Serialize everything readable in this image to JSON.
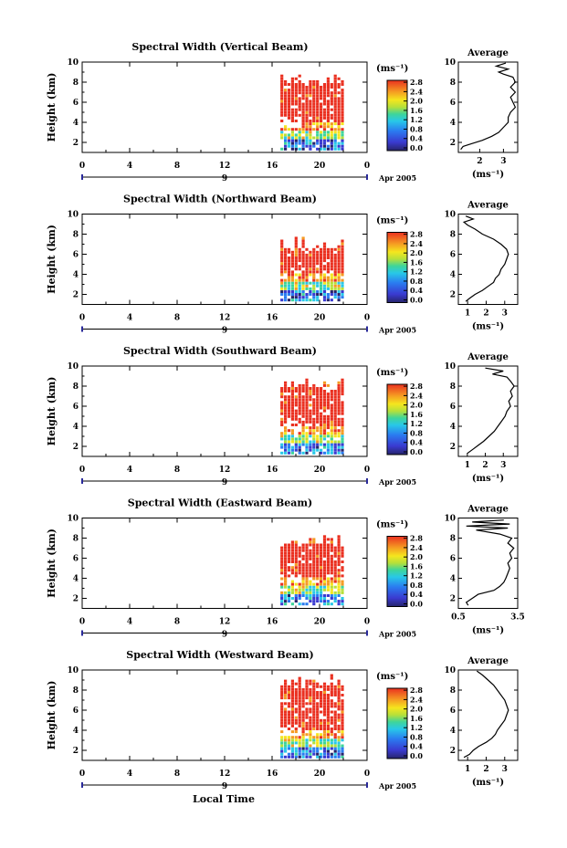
{
  "figure": {
    "bottom_xlabel": "Local Time",
    "date_label": "Apr 2005"
  },
  "chart_data": [
    {
      "type": "heatmap",
      "title": "Spectral Width (Vertical Beam)",
      "ylabel": "Height (km)",
      "yticks": [
        "2",
        "4",
        "6",
        "8",
        "10"
      ],
      "ylim": [
        1,
        10
      ],
      "xticks": [
        "0",
        "4",
        "8",
        "12",
        "16",
        "20",
        "0"
      ],
      "xlim": [
        0,
        24
      ],
      "day_label": "9",
      "date_label": "Apr 2005",
      "colorbar": {
        "unit": "(ms⁻¹)",
        "ticks": [
          "0.0",
          "0.4",
          "0.8",
          "1.2",
          "1.6",
          "2.0",
          "2.4",
          "2.8"
        ],
        "range": [
          0,
          3
        ]
      },
      "data_extent": {
        "x": [
          16.7,
          21.9
        ],
        "ymin": 1.2,
        "ymax": 8.6,
        "red_above": 3.0
      },
      "average": {
        "title": "Average",
        "xlabel": "(ms⁻¹)",
        "xticks": [
          "2",
          "3"
        ],
        "xtick_values": [
          2,
          3
        ],
        "xlim": [
          1.1,
          3.6
        ],
        "profile": [
          [
            1.3,
            1.2
          ],
          [
            1.6,
            1.3
          ],
          [
            1.9,
            1.7
          ],
          [
            2.2,
            2.1
          ],
          [
            2.6,
            2.5
          ],
          [
            3.0,
            2.8
          ],
          [
            3.5,
            3.0
          ],
          [
            4.0,
            3.2
          ],
          [
            4.5,
            3.2
          ],
          [
            5.0,
            3.3
          ],
          [
            5.5,
            3.5
          ],
          [
            6.0,
            3.4
          ],
          [
            6.5,
            3.3
          ],
          [
            7.0,
            3.5
          ],
          [
            7.5,
            3.3
          ],
          [
            8.0,
            3.5
          ],
          [
            8.5,
            3.4
          ],
          [
            8.8,
            3.0
          ],
          [
            9.0,
            2.8
          ],
          [
            9.3,
            3.2
          ],
          [
            9.6,
            2.7
          ],
          [
            9.9,
            3.1
          ]
        ]
      }
    },
    {
      "type": "heatmap",
      "title": "Spectral Width (Northward Beam)",
      "ylabel": "Height (km)",
      "yticks": [
        "2",
        "4",
        "6",
        "8",
        "10"
      ],
      "ylim": [
        1,
        10
      ],
      "xticks": [
        "0",
        "4",
        "8",
        "12",
        "16",
        "20",
        "0"
      ],
      "xlim": [
        0,
        24
      ],
      "day_label": "9",
      "date_label": "Apr 2005",
      "colorbar": {
        "unit": "(ms⁻¹)",
        "ticks": [
          "0.0",
          "0.4",
          "0.8",
          "1.2",
          "1.6",
          "2.0",
          "2.4",
          "2.8"
        ],
        "range": [
          0,
          3
        ]
      },
      "data_extent": {
        "x": [
          16.7,
          21.9
        ],
        "ymin": 1.3,
        "ymax": 7.5,
        "red_above": 3.0
      },
      "average": {
        "title": "Average",
        "xlabel": "(ms⁻¹)",
        "xticks": [
          "1",
          "2",
          "3"
        ],
        "xtick_values": [
          1,
          2,
          3
        ],
        "xlim": [
          0.5,
          3.7
        ],
        "profile": [
          [
            1.3,
            0.9
          ],
          [
            1.6,
            1.1
          ],
          [
            2.0,
            1.4
          ],
          [
            2.4,
            1.8
          ],
          [
            2.8,
            2.1
          ],
          [
            3.2,
            2.4
          ],
          [
            3.6,
            2.5
          ],
          [
            4.0,
            2.7
          ],
          [
            4.5,
            2.8
          ],
          [
            5.0,
            3.0
          ],
          [
            5.5,
            3.1
          ],
          [
            6.0,
            3.2
          ],
          [
            6.5,
            3.1
          ],
          [
            7.0,
            2.8
          ],
          [
            7.5,
            2.4
          ],
          [
            8.0,
            1.8
          ],
          [
            8.5,
            1.4
          ],
          [
            8.9,
            1.0
          ],
          [
            9.2,
            0.8
          ],
          [
            9.5,
            1.3
          ],
          [
            9.8,
            0.9
          ]
        ]
      }
    },
    {
      "type": "heatmap",
      "title": "Spectral Width (Southward Beam)",
      "ylabel": "Height (km)",
      "yticks": [
        "2",
        "4",
        "6",
        "8",
        "10"
      ],
      "ylim": [
        1,
        10
      ],
      "xticks": [
        "0",
        "4",
        "8",
        "12",
        "16",
        "20",
        "0"
      ],
      "xlim": [
        0,
        24
      ],
      "day_label": "9",
      "date_label": "Apr 2005",
      "colorbar": {
        "unit": "(ms⁻¹)",
        "ticks": [
          "0.0",
          "0.4",
          "0.8",
          "1.2",
          "1.6",
          "2.0",
          "2.4",
          "2.8"
        ],
        "range": [
          0,
          3
        ]
      },
      "data_extent": {
        "x": [
          16.7,
          21.9
        ],
        "ymin": 1.2,
        "ymax": 8.8,
        "red_above": 3.0
      },
      "average": {
        "title": "Average",
        "xlabel": "(ms⁻¹)",
        "xticks": [
          "1",
          "2",
          "3"
        ],
        "xtick_values": [
          1,
          2,
          3
        ],
        "xlim": [
          0.5,
          3.8
        ],
        "profile": [
          [
            1.3,
            1.0
          ],
          [
            1.7,
            1.3
          ],
          [
            2.1,
            1.6
          ],
          [
            2.5,
            1.9
          ],
          [
            3.0,
            2.2
          ],
          [
            3.5,
            2.5
          ],
          [
            4.0,
            2.7
          ],
          [
            4.5,
            2.9
          ],
          [
            5.0,
            3.1
          ],
          [
            5.5,
            3.2
          ],
          [
            6.0,
            3.4
          ],
          [
            6.5,
            3.3
          ],
          [
            7.0,
            3.5
          ],
          [
            7.5,
            3.4
          ],
          [
            8.0,
            3.6
          ],
          [
            8.5,
            3.4
          ],
          [
            8.9,
            3.2
          ],
          [
            9.2,
            2.4
          ],
          [
            9.5,
            3.0
          ],
          [
            9.8,
            2.0
          ]
        ]
      }
    },
    {
      "type": "heatmap",
      "title": "Spectral Width (Eastward Beam)",
      "ylabel": "Height (km)",
      "yticks": [
        "2",
        "4",
        "6",
        "8",
        "10"
      ],
      "ylim": [
        1,
        10
      ],
      "xticks": [
        "0",
        "4",
        "8",
        "12",
        "16",
        "20",
        "0"
      ],
      "xlim": [
        0,
        24
      ],
      "day_label": "9",
      "date_label": "Apr 2005",
      "colorbar": {
        "unit": "(ms⁻¹)",
        "ticks": [
          "0.0",
          "0.4",
          "0.8",
          "1.2",
          "1.6",
          "2.0",
          "2.4",
          "2.8"
        ],
        "range": [
          0,
          3
        ]
      },
      "data_extent": {
        "x": [
          16.7,
          21.9
        ],
        "ymin": 1.3,
        "ymax": 8.2,
        "red_above": 3.0
      },
      "average": {
        "title": "Average",
        "xlabel": "(ms⁻¹)",
        "xticks": [
          "0.5",
          "3.5"
        ],
        "xtick_values": [
          0.5,
          3.5
        ],
        "xlim": [
          0.5,
          3.5
        ],
        "profile": [
          [
            1.3,
            1.0
          ],
          [
            1.6,
            0.9
          ],
          [
            2.0,
            1.2
          ],
          [
            2.4,
            1.5
          ],
          [
            2.8,
            2.3
          ],
          [
            3.2,
            2.6
          ],
          [
            3.6,
            2.8
          ],
          [
            4.0,
            2.9
          ],
          [
            4.5,
            3.0
          ],
          [
            5.0,
            3.1
          ],
          [
            5.5,
            3.0
          ],
          [
            6.0,
            3.2
          ],
          [
            6.5,
            3.1
          ],
          [
            7.0,
            3.3
          ],
          [
            7.5,
            3.0
          ],
          [
            8.0,
            3.2
          ],
          [
            8.4,
            2.6
          ],
          [
            8.8,
            1.4
          ],
          [
            9.0,
            3.0
          ],
          [
            9.2,
            0.9
          ],
          [
            9.4,
            3.1
          ],
          [
            9.6,
            1.2
          ],
          [
            9.8,
            2.8
          ]
        ]
      }
    },
    {
      "type": "heatmap",
      "title": "Spectral Width (Westward Beam)",
      "ylabel": "Height (km)",
      "yticks": [
        "2",
        "4",
        "6",
        "8",
        "10"
      ],
      "ylim": [
        1,
        10
      ],
      "xticks": [
        "0",
        "4",
        "8",
        "12",
        "16",
        "20",
        "0"
      ],
      "xlim": [
        0,
        24
      ],
      "day_label": "9",
      "date_label": "Apr 2005",
      "colorbar": {
        "unit": "(ms⁻¹)",
        "ticks": [
          "0.0",
          "0.4",
          "0.8",
          "1.2",
          "1.6",
          "2.0",
          "2.4",
          "2.8"
        ],
        "range": [
          0,
          3
        ]
      },
      "data_extent": {
        "x": [
          16.7,
          21.9
        ],
        "ymin": 1.2,
        "ymax": 9.5,
        "red_above": 3.0
      },
      "average": {
        "title": "Average",
        "xlabel": "(ms⁻¹)",
        "xticks": [
          "1",
          "2",
          "3"
        ],
        "xtick_values": [
          1,
          2,
          3
        ],
        "xlim": [
          0.5,
          3.7
        ],
        "profile": [
          [
            1.3,
            0.8
          ],
          [
            1.6,
            1.1
          ],
          [
            2.0,
            1.3
          ],
          [
            2.4,
            1.6
          ],
          [
            2.8,
            2.0
          ],
          [
            3.2,
            2.3
          ],
          [
            3.6,
            2.5
          ],
          [
            4.0,
            2.6
          ],
          [
            4.5,
            2.8
          ],
          [
            5.0,
            3.0
          ],
          [
            5.5,
            3.1
          ],
          [
            6.0,
            3.2
          ],
          [
            6.5,
            3.1
          ],
          [
            7.0,
            3.0
          ],
          [
            7.5,
            2.8
          ],
          [
            8.0,
            2.6
          ],
          [
            8.5,
            2.4
          ],
          [
            9.0,
            2.1
          ],
          [
            9.5,
            1.8
          ],
          [
            9.9,
            1.5
          ]
        ]
      }
    }
  ]
}
